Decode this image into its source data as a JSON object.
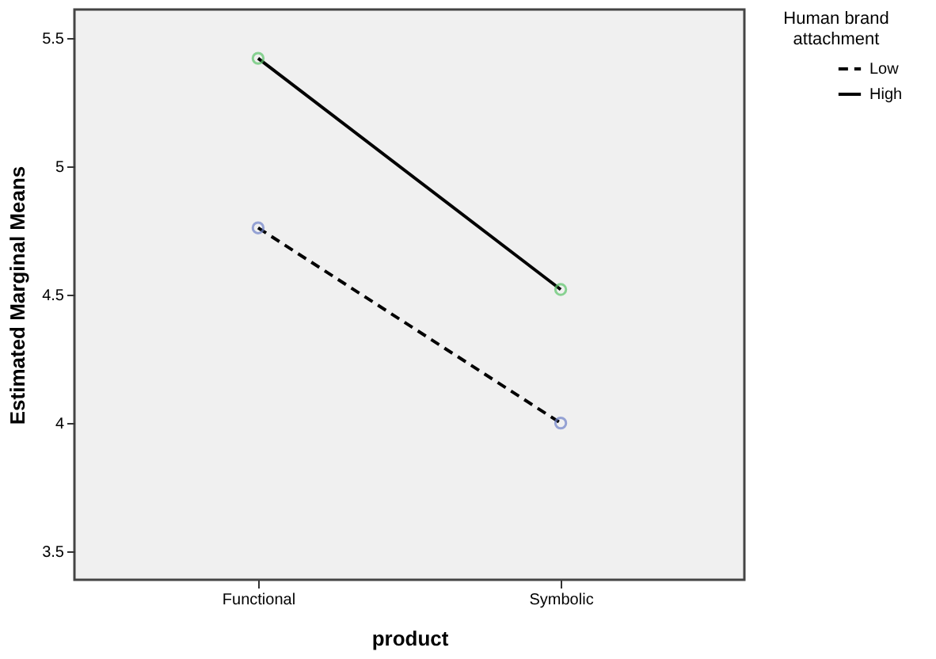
{
  "chart_data": {
    "type": "line",
    "xlabel": "product",
    "ylabel": "Estimated Marginal Means",
    "legend_title": "Human brand attachment",
    "categories": [
      "Functional",
      "Symbolic"
    ],
    "series": [
      {
        "name": "Low",
        "color": "#000000",
        "colors": [
          "#6f82c9",
          "#6f82c9"
        ],
        "line_style": "dashed",
        "values": [
          4.76,
          4.0
        ]
      },
      {
        "name": "High",
        "color": "#000000",
        "colors": [
          "#5cc46a",
          "#5cc46a"
        ],
        "line_style": "solid",
        "values": [
          5.42,
          4.52
        ]
      }
    ],
    "ylim": [
      3.39,
      5.61
    ],
    "yticks": [
      3.5,
      4,
      4.5,
      5,
      5.5
    ],
    "grid": false,
    "legend": "top right",
    "marker": "circle"
  }
}
